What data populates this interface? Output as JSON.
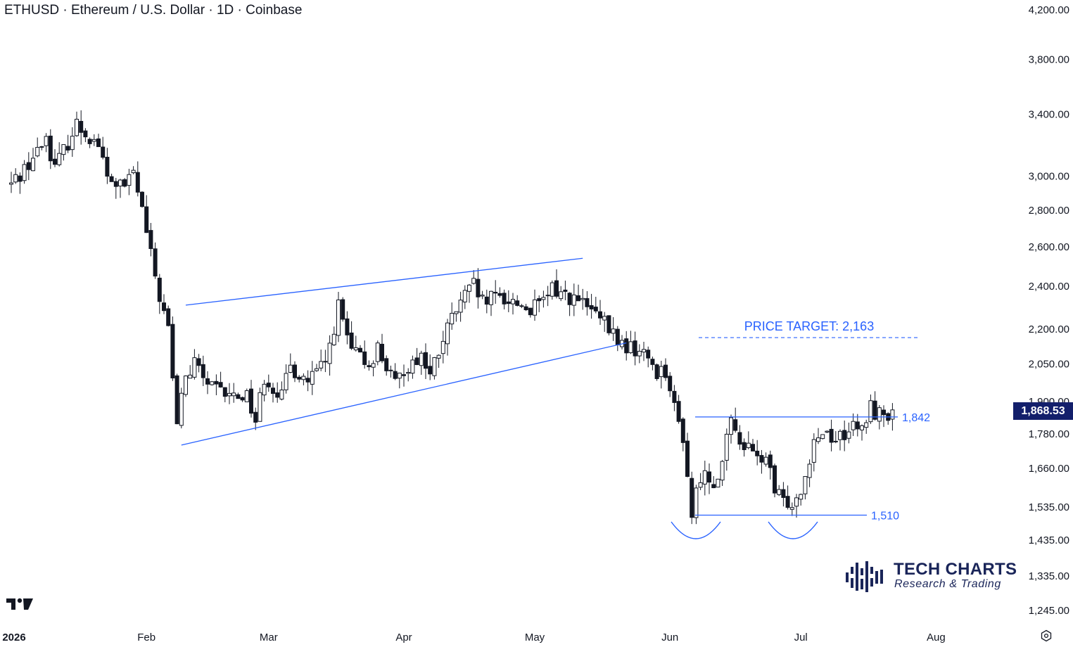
{
  "title": "ETHUSD · Ethereum / U.S. Dollar · 1D · Coinbase",
  "current_price": "1,868.53",
  "brand": {
    "name": "TECH CHARTS",
    "tagline": "Research & Trading"
  },
  "icons": {
    "tradingview_logo": "tv-logo-icon",
    "settings": "settings-icon",
    "brand_logo": "tech-charts-logo-icon"
  },
  "colors": {
    "up_candle": "#ffffff",
    "down_candle": "#131722",
    "trendline": "#2962ff",
    "price_tag": "#131f6b"
  },
  "chart_data": {
    "type": "candlestick",
    "symbol": "ETHUSD",
    "interval": "1D",
    "exchange": "Coinbase",
    "y_scale": "log",
    "ylim": [
      1200,
      4300
    ],
    "y_ticks": [
      {
        "value": 4200,
        "label": "4,200.00"
      },
      {
        "value": 3800,
        "label": "3,800.00"
      },
      {
        "value": 3400,
        "label": "3,400.00"
      },
      {
        "value": 3000,
        "label": "3,000.00"
      },
      {
        "value": 2800,
        "label": "2,800.00"
      },
      {
        "value": 2600,
        "label": "2,600.00"
      },
      {
        "value": 2400,
        "label": "2,400.00"
      },
      {
        "value": 2200,
        "label": "2,200.00"
      },
      {
        "value": 2050,
        "label": "2,050.00"
      },
      {
        "value": 1900,
        "label": "1,900.00"
      },
      {
        "value": 1780,
        "label": "1,780.00"
      },
      {
        "value": 1660,
        "label": "1,660.00"
      },
      {
        "value": 1535,
        "label": "1,535.00"
      },
      {
        "value": 1435,
        "label": "1,435.00"
      },
      {
        "value": 1335,
        "label": "1,335.00"
      },
      {
        "value": 1245,
        "label": "1,245.00"
      }
    ],
    "x_ticks": [
      {
        "label": "2026",
        "day": 0
      },
      {
        "label": "Feb",
        "day": 31
      },
      {
        "label": "Mar",
        "day": 59
      },
      {
        "label": "Apr",
        "day": 90
      },
      {
        "label": "May",
        "day": 120
      },
      {
        "label": "Jun",
        "day": 151
      },
      {
        "label": "Jul",
        "day": 181
      },
      {
        "label": "Aug",
        "day": 212
      }
    ],
    "x_range_days": [
      0,
      220
    ],
    "close_path": [
      [
        0,
        2950
      ],
      [
        6,
        3150
      ],
      [
        8,
        3250
      ],
      [
        10,
        3050
      ],
      [
        15,
        3330
      ],
      [
        20,
        3200
      ],
      [
        22,
        2980
      ],
      [
        26,
        2930
      ],
      [
        28,
        3020
      ],
      [
        30,
        2800
      ],
      [
        32,
        2550
      ],
      [
        34,
        2350
      ],
      [
        36,
        2200
      ],
      [
        38,
        1800
      ],
      [
        39,
        1950
      ],
      [
        42,
        2050
      ],
      [
        46,
        1950
      ],
      [
        50,
        1920
      ],
      [
        54,
        1930
      ],
      [
        56,
        1830
      ],
      [
        58,
        2000
      ],
      [
        62,
        1920
      ],
      [
        64,
        2040
      ],
      [
        68,
        1980
      ],
      [
        72,
        2050
      ],
      [
        75,
        2300
      ],
      [
        78,
        2100
      ],
      [
        82,
        2050
      ],
      [
        84,
        2120
      ],
      [
        86,
        2040
      ],
      [
        88,
        1960
      ],
      [
        90,
        2030
      ],
      [
        94,
        2090
      ],
      [
        96,
        2000
      ],
      [
        98,
        2100
      ],
      [
        101,
        2250
      ],
      [
        104,
        2350
      ],
      [
        106,
        2400
      ],
      [
        108,
        2320
      ],
      [
        112,
        2350
      ],
      [
        116,
        2320
      ],
      [
        119,
        2290
      ],
      [
        122,
        2320
      ],
      [
        124,
        2390
      ],
      [
        128,
        2350
      ],
      [
        132,
        2300
      ],
      [
        136,
        2220
      ],
      [
        140,
        2130
      ],
      [
        143,
        2110
      ],
      [
        146,
        2080
      ],
      [
        148,
        2020
      ],
      [
        150,
        2030
      ],
      [
        152,
        1870
      ],
      [
        154,
        1770
      ],
      [
        156,
        1510
      ],
      [
        158,
        1640
      ],
      [
        161,
        1620
      ],
      [
        163,
        1680
      ],
      [
        165,
        1820
      ],
      [
        168,
        1740
      ],
      [
        171,
        1690
      ],
      [
        173,
        1700
      ],
      [
        175,
        1580
      ],
      [
        177,
        1550
      ],
      [
        180,
        1560
      ],
      [
        182,
        1640
      ],
      [
        184,
        1770
      ],
      [
        187,
        1790
      ],
      [
        189,
        1760
      ],
      [
        192,
        1800
      ],
      [
        195,
        1790
      ],
      [
        197,
        1880
      ],
      [
        199,
        1850
      ],
      [
        202,
        1865
      ]
    ],
    "candle_count": 210,
    "last_close": 1868.53,
    "annotations": [
      {
        "type": "horizontal",
        "value": 1842,
        "label": "1,842"
      },
      {
        "type": "horizontal",
        "value": 1510,
        "label": "1,510"
      },
      {
        "type": "horizontal-dashed",
        "value": 2163,
        "label": "PRICE TARGET: 2,163"
      },
      {
        "type": "trendline",
        "name": "wedge-upper",
        "from": [
          40,
          2310
        ],
        "to": [
          131,
          2540
        ]
      },
      {
        "type": "trendline",
        "name": "wedge-lower",
        "from": [
          39,
          1740
        ],
        "to": [
          141,
          2140
        ]
      },
      {
        "type": "arc",
        "name": "bottom-1"
      },
      {
        "type": "arc",
        "name": "bottom-2"
      }
    ]
  }
}
